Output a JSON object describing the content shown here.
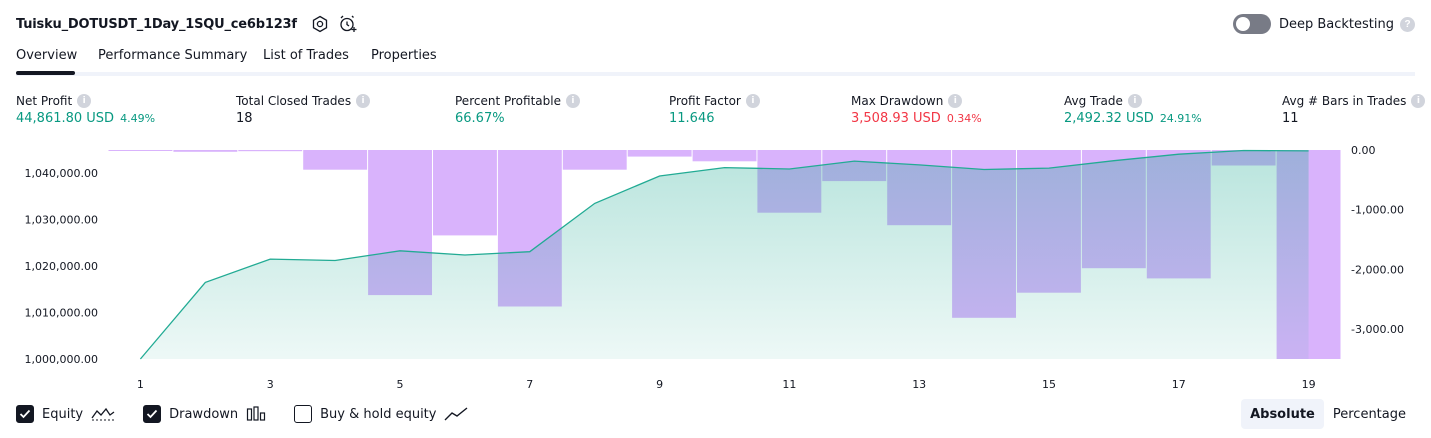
{
  "header": {
    "strategy_name": "Tuisku_DOTUSDT_1Day_1SQU_ce6b123f",
    "settings_icon": "settings-icon",
    "alert_icon": "add-alert-icon",
    "deep_backtesting_label": "Deep Backtesting",
    "deep_backtesting_enabled": false,
    "help_glyph": "?"
  },
  "tabs": [
    {
      "label": "Overview",
      "active": true
    },
    {
      "label": "Performance Summary",
      "active": false
    },
    {
      "label": "List of Trades",
      "active": false
    },
    {
      "label": "Properties",
      "active": false
    }
  ],
  "metrics": {
    "info_glyph": "i",
    "net_profit": {
      "label": "Net Profit",
      "value": "44,861.80 USD",
      "sub": "4.49%"
    },
    "total_closed_trades": {
      "label": "Total Closed Trades",
      "value": "18"
    },
    "percent_profitable": {
      "label": "Percent Profitable",
      "value": "66.67%"
    },
    "profit_factor": {
      "label": "Profit Factor",
      "value": "11.646"
    },
    "max_drawdown": {
      "label": "Max Drawdown",
      "value": "3,508.93 USD",
      "sub": "0.34%"
    },
    "avg_trade": {
      "label": "Avg Trade",
      "value": "2,492.32 USD",
      "sub": "24.91%"
    },
    "avg_bars": {
      "label": "Avg # Bars in Trades",
      "value": "11"
    }
  },
  "colors": {
    "positive": "#089981",
    "negative": "#f23645",
    "equity_line": "#22ab94",
    "drawdown_bar": "#d9b3fc"
  },
  "chart_data": {
    "type": "line",
    "x": [
      1,
      2,
      3,
      4,
      5,
      6,
      7,
      8,
      9,
      10,
      11,
      12,
      13,
      14,
      15,
      16,
      17,
      18,
      19
    ],
    "x_tick_labels": [
      "1",
      "3",
      "5",
      "7",
      "9",
      "11",
      "13",
      "15",
      "17",
      "19"
    ],
    "series": [
      {
        "name": "Equity",
        "type": "area",
        "axis": "left",
        "values": [
          1000000,
          1016500,
          1021500,
          1021200,
          1023300,
          1022400,
          1023100,
          1033500,
          1039400,
          1041200,
          1040900,
          1042600,
          1041800,
          1040800,
          1041100,
          1042700,
          1044100,
          1044900,
          1044800
        ]
      },
      {
        "name": "Drawdown",
        "type": "bar",
        "axis": "right",
        "values": [
          -10,
          -30,
          -20,
          -330,
          -2430,
          -1430,
          -2620,
          -330,
          -110,
          -190,
          -1050,
          -520,
          -1260,
          -2810,
          -2390,
          -1980,
          -2150,
          -260,
          -3500
        ]
      }
    ],
    "left_axis": {
      "ylim": [
        1000000,
        1045000
      ],
      "tick_labels": [
        "1,040,000.00",
        "1,030,000.00",
        "1,020,000.00",
        "1,010,000.00",
        "1,000,000.00"
      ]
    },
    "right_axis": {
      "ylim": [
        -3500,
        0
      ],
      "tick_labels": [
        "0.00",
        "-1,000.00",
        "-2,000.00",
        "-3,000.00"
      ]
    },
    "grid": false
  },
  "legend": {
    "equity": {
      "label": "Equity",
      "checked": true,
      "icon": "equity-line-icon"
    },
    "drawdown": {
      "label": "Drawdown",
      "checked": true,
      "icon": "drawdown-bars-icon"
    },
    "buy_hold": {
      "label": "Buy & hold equity",
      "checked": false,
      "icon": "buy-hold-line-icon"
    }
  },
  "scale_toggle": {
    "options": [
      "Absolute",
      "Percentage"
    ],
    "selected": "Absolute"
  }
}
